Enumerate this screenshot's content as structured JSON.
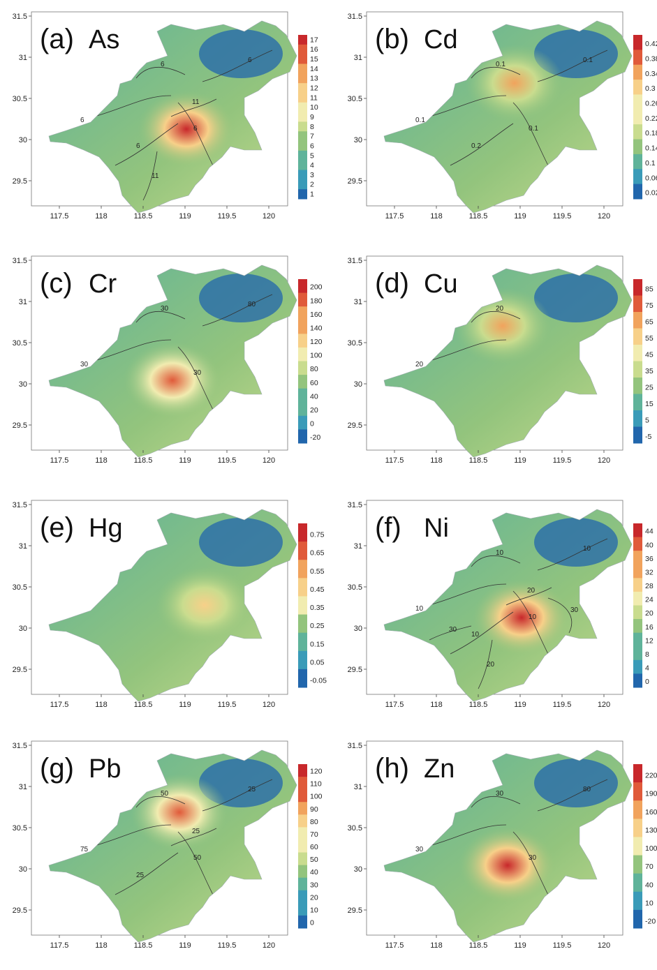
{
  "panels": [
    {
      "id": "a",
      "title": "(a)",
      "element": "As",
      "cmin": 1,
      "cmax": 17,
      "hot": 0.78,
      "colorbar": [
        "17",
        "16",
        "15",
        "14",
        "13",
        "12",
        "11",
        "10",
        "9",
        "8",
        "7",
        "6",
        "5",
        "4",
        "3",
        "2",
        "1"
      ],
      "contours": [
        "6",
        "6",
        "6",
        "6",
        "6",
        "11",
        "11"
      ]
    },
    {
      "id": "b",
      "title": "(b)",
      "element": "Cd",
      "cmin": 0.02,
      "cmax": 0.42,
      "hot": 0.55,
      "colorbar": [
        "0.42",
        "0.38",
        "0.34",
        "0.3",
        "0.26",
        "0.22",
        "0.18",
        "0.14",
        "0.1",
        "0.06",
        "0.02"
      ],
      "contours": [
        "0.1",
        "0.1",
        "0.1",
        "0.1",
        "0.2"
      ]
    },
    {
      "id": "c",
      "title": "(c)",
      "element": "Cr",
      "cmin": -20,
      "cmax": 200,
      "hot": 0.72,
      "colorbar": [
        "200",
        "180",
        "160",
        "140",
        "120",
        "100",
        "80",
        "60",
        "40",
        "20",
        "0",
        "-20"
      ],
      "contours": [
        "30",
        "30",
        "30",
        "80"
      ]
    },
    {
      "id": "d",
      "title": "(d)",
      "element": "Cu",
      "cmin": -5,
      "cmax": 85,
      "hot": 0.55,
      "colorbar": [
        "85",
        "75",
        "65",
        "55",
        "45",
        "35",
        "25",
        "15",
        "5",
        "-5"
      ],
      "contours": [
        "20",
        "20"
      ]
    },
    {
      "id": "e",
      "title": "(e)",
      "element": "Hg",
      "cmin": -0.05,
      "cmax": 0.75,
      "hot": 0.4,
      "colorbar": [
        "0.75",
        "0.65",
        "0.55",
        "0.45",
        "0.35",
        "0.25",
        "0.15",
        "0.05",
        "-0.05"
      ],
      "contours": []
    },
    {
      "id": "f",
      "title": "(f)",
      "element": "Ni",
      "cmin": 0,
      "cmax": 44,
      "hot": 0.75,
      "colorbar": [
        "44",
        "40",
        "36",
        "32",
        "28",
        "24",
        "20",
        "16",
        "12",
        "8",
        "4",
        "0"
      ],
      "contours": [
        "10",
        "10",
        "10",
        "10",
        "10",
        "20",
        "20",
        "30",
        "30"
      ]
    },
    {
      "id": "g",
      "title": "(g)",
      "element": "Pb",
      "cmin": 0,
      "cmax": 120,
      "hot": 0.7,
      "colorbar": [
        "120",
        "110",
        "100",
        "90",
        "80",
        "70",
        "60",
        "50",
        "40",
        "30",
        "20",
        "10",
        "0"
      ],
      "contours": [
        "75",
        "50",
        "50",
        "25",
        "25",
        "25"
      ]
    },
    {
      "id": "h",
      "title": "(h)",
      "element": "Zn",
      "cmin": -20,
      "cmax": 220,
      "hot": 0.8,
      "colorbar": [
        "220",
        "190",
        "160",
        "130",
        "100",
        "70",
        "40",
        "10",
        "-20"
      ],
      "contours": [
        "30",
        "30",
        "30",
        "80"
      ]
    }
  ],
  "x_ticks": [
    "117.5",
    "118",
    "118.5",
    "119",
    "119.5",
    "120"
  ],
  "y_ticks": [
    "31.5",
    "31",
    "30.5",
    "30",
    "29.5"
  ],
  "colormap": [
    "#2166ac",
    "#3a9bb8",
    "#5fb39a",
    "#93c47d",
    "#c9dc8e",
    "#f1ecb0",
    "#f7d089",
    "#f1a35d",
    "#e05a3a",
    "#c8282b"
  ]
}
